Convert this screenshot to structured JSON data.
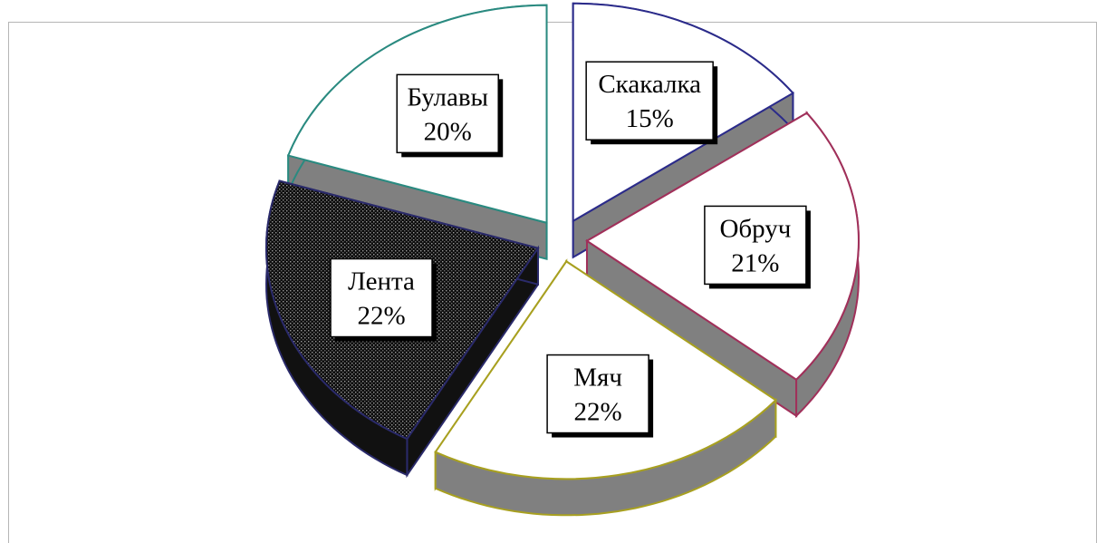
{
  "header": {
    "title_fragment": ""
  },
  "chart_data": {
    "type": "pie",
    "title": "",
    "legend": "none",
    "three_d": true,
    "exploded": true,
    "categories": [
      "Скакалка",
      "Обруч",
      "Мяч",
      "Лента",
      "Булавы"
    ],
    "values": [
      15,
      21,
      22,
      22,
      20
    ],
    "labels": [
      "15%",
      "21%",
      "22%",
      "22%",
      "20%"
    ],
    "colors": {
      "Скакалка": "#2b2b8a",
      "Обруч": "#a0305a",
      "Мяч": "#a8a020",
      "Лента": "#2a2a6a",
      "Булавы": "#2a8a80",
      "side_fill": "#808080",
      "lenta_fill": "#111111"
    }
  }
}
